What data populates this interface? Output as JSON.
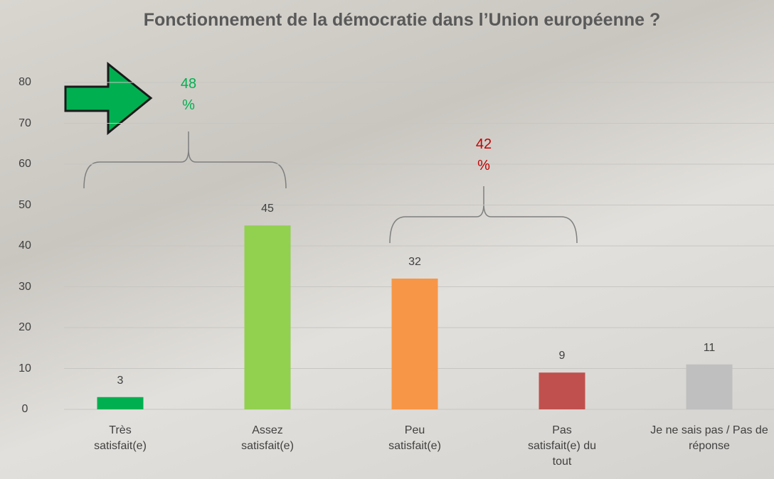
{
  "chart_data": {
    "type": "bar",
    "title": "Fonctionnement de la démocratie dans l’Union européenne ?",
    "categories": [
      "Très satisfait(e)",
      "Assez satisfait(e)",
      "Peu satisfait(e)",
      "Pas satisfait(e) du tout",
      "Je ne sais pas / Pas de réponse"
    ],
    "values": [
      3,
      45,
      32,
      9,
      11
    ],
    "colors": [
      "#00b050",
      "#92d050",
      "#f79646",
      "#c0504d",
      "#bfbfbf"
    ],
    "ylim": [
      0,
      80
    ],
    "yticks": [
      0,
      10,
      20,
      30,
      40,
      50,
      60,
      70,
      80
    ],
    "grid": true,
    "annotations": [
      {
        "text": "48 %",
        "color": "#00b050"
      },
      {
        "text": "42 %",
        "color": "#c00000"
      }
    ]
  }
}
